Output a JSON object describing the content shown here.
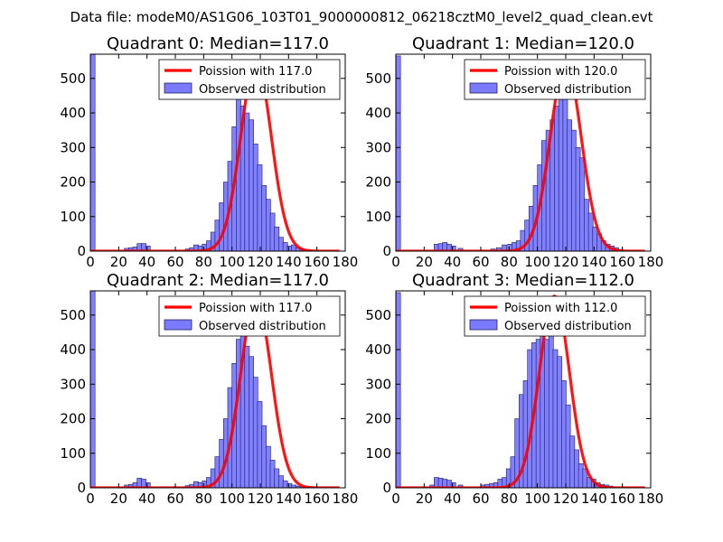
{
  "suptitle": "Data file: modeM0/AS1G06_103T01_9000000812_06218cztM0_level2_quad_clean.evt",
  "colors": {
    "bar_fill": "#7a7aff",
    "bar_edge": "#202060",
    "poisson_line": "#ff0000"
  },
  "chart_data": [
    {
      "type": "bar",
      "title": "Quadrant 0: Median=117.0",
      "xlim": [
        0,
        180
      ],
      "ylim": [
        0,
        570
      ],
      "xticks": [
        0,
        20,
        40,
        60,
        80,
        100,
        120,
        140,
        160,
        180
      ],
      "yticks": [
        0,
        100,
        200,
        300,
        400,
        500
      ],
      "legend": [
        "Poission with 117.0",
        "Observed distribution"
      ],
      "median": 117,
      "poisson_peak": 547,
      "bin_width": 3.3,
      "bin_starts": [
        0,
        24,
        27,
        30,
        33,
        36,
        39,
        67,
        70,
        73,
        76,
        79,
        82,
        85,
        88,
        91,
        94,
        97,
        100,
        103,
        106,
        109,
        112,
        115,
        118,
        121,
        124,
        127,
        130,
        133,
        136,
        139,
        142,
        145,
        148,
        151,
        154
      ],
      "counts": [
        570,
        8,
        10,
        12,
        22,
        22,
        15,
        6,
        10,
        18,
        15,
        20,
        30,
        55,
        90,
        140,
        200,
        260,
        360,
        490,
        420,
        400,
        380,
        310,
        250,
        190,
        150,
        110,
        70,
        40,
        25,
        15,
        18,
        10,
        6,
        4,
        3
      ]
    },
    {
      "type": "bar",
      "title": "Quadrant 1: Median=120.0",
      "xlim": [
        0,
        180
      ],
      "ylim": [
        0,
        570
      ],
      "xticks": [
        0,
        20,
        40,
        60,
        80,
        100,
        120,
        140,
        160,
        180
      ],
      "yticks": [
        0,
        100,
        200,
        300,
        400,
        500
      ],
      "legend": [
        "Poission with 120.0",
        "Observed distribution"
      ],
      "median": 120,
      "poisson_peak": 545,
      "bin_width": 3.3,
      "bin_starts": [
        0,
        27,
        30,
        33,
        36,
        39,
        44,
        67,
        71,
        75,
        79,
        82,
        85,
        88,
        91,
        94,
        97,
        100,
        103,
        106,
        109,
        112,
        115,
        118,
        121,
        124,
        127,
        130,
        133,
        136,
        139,
        142,
        145,
        148,
        151,
        154,
        157
      ],
      "counts": [
        565,
        20,
        22,
        25,
        20,
        15,
        8,
        6,
        10,
        18,
        20,
        25,
        30,
        60,
        90,
        130,
        190,
        250,
        320,
        350,
        380,
        420,
        500,
        450,
        380,
        350,
        300,
        270,
        150,
        110,
        70,
        50,
        30,
        20,
        15,
        10,
        5
      ]
    },
    {
      "type": "bar",
      "title": "Quadrant 2: Median=117.0",
      "xlim": [
        0,
        180
      ],
      "ylim": [
        0,
        570
      ],
      "xticks": [
        0,
        20,
        40,
        60,
        80,
        100,
        120,
        140,
        160,
        180
      ],
      "yticks": [
        0,
        100,
        200,
        300,
        400,
        500
      ],
      "legend": [
        "Poission with 117.0",
        "Observed distribution"
      ],
      "median": 117,
      "poisson_peak": 547,
      "bin_width": 3.3,
      "bin_starts": [
        0,
        24,
        27,
        30,
        33,
        36,
        39,
        67,
        70,
        73,
        76,
        79,
        82,
        85,
        88,
        91,
        94,
        97,
        100,
        103,
        106,
        109,
        112,
        115,
        118,
        121,
        124,
        127,
        130,
        133,
        136,
        139,
        142,
        145,
        148,
        151,
        154
      ],
      "counts": [
        570,
        8,
        10,
        15,
        28,
        25,
        15,
        6,
        10,
        18,
        15,
        20,
        30,
        55,
        90,
        140,
        200,
        290,
        360,
        430,
        500,
        410,
        380,
        320,
        250,
        180,
        120,
        80,
        55,
        35,
        20,
        12,
        8,
        5,
        4,
        3,
        2
      ]
    },
    {
      "type": "bar",
      "title": "Quadrant 3: Median=112.0",
      "xlim": [
        0,
        180
      ],
      "ylim": [
        0,
        570
      ],
      "xticks": [
        0,
        20,
        40,
        60,
        80,
        100,
        120,
        140,
        160,
        180
      ],
      "yticks": [
        0,
        100,
        200,
        300,
        400,
        500
      ],
      "legend": [
        "Poission with 112.0",
        "Observed distribution"
      ],
      "median": 112,
      "poisson_peak": 555,
      "bin_width": 3.3,
      "bin_starts": [
        0,
        24,
        27,
        30,
        33,
        36,
        39,
        44,
        60,
        63,
        66,
        69,
        72,
        75,
        78,
        81,
        84,
        87,
        90,
        93,
        96,
        99,
        102,
        105,
        108,
        111,
        114,
        117,
        120,
        123,
        126,
        129,
        132,
        135,
        138,
        141,
        144,
        147,
        150
      ],
      "counts": [
        565,
        8,
        30,
        28,
        25,
        22,
        15,
        8,
        8,
        10,
        12,
        15,
        25,
        30,
        55,
        90,
        200,
        270,
        310,
        400,
        420,
        430,
        500,
        430,
        440,
        400,
        380,
        310,
        240,
        150,
        110,
        70,
        55,
        30,
        25,
        15,
        10,
        8,
        5
      ]
    }
  ]
}
